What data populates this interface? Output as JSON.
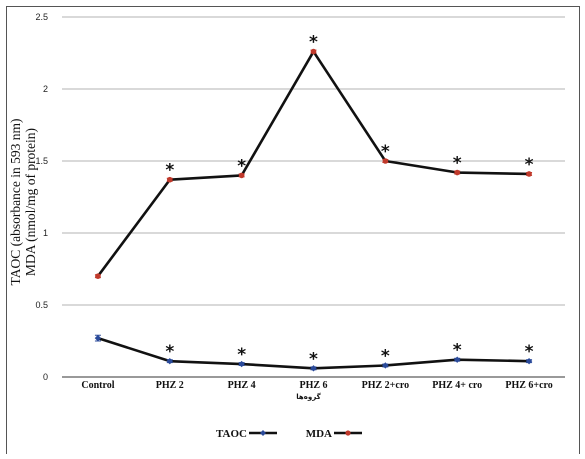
{
  "chart_data": {
    "type": "line",
    "title": "",
    "ylabel_lines": [
      "TAOC (absorbance in 593 nm)",
      "MDA (nmol/mg of protein)"
    ],
    "xlabel": "گروه‌ها",
    "categories": [
      "Control",
      "PHZ 2",
      "PHZ 4",
      "PHZ 6",
      "PHZ 2+cro",
      "PHZ 4+ cro",
      "PHZ 6+cro"
    ],
    "ylim": [
      0,
      2.5
    ],
    "yticks": [
      "0",
      "0.5",
      "1",
      "1.5",
      "2",
      "2.5"
    ],
    "grid": true,
    "legend_position": "bottom",
    "series": [
      {
        "name": "TAOC",
        "color": "#2a4a9a",
        "marker": "diamond",
        "values": [
          0.27,
          0.11,
          0.09,
          0.06,
          0.08,
          0.12,
          0.11
        ],
        "error": [
          0.02,
          0.01,
          0.01,
          0.01,
          0.01,
          0.01,
          0.01
        ],
        "significant": [
          false,
          true,
          true,
          true,
          true,
          true,
          true
        ]
      },
      {
        "name": "MDA",
        "color": "#c0392b",
        "marker": "circle",
        "values": [
          0.7,
          1.37,
          1.4,
          2.26,
          1.5,
          1.42,
          1.41
        ],
        "error": [
          0.01,
          0.01,
          0.01,
          0.01,
          0.01,
          0.01,
          0.01
        ],
        "significant": [
          false,
          true,
          true,
          true,
          true,
          true,
          true
        ]
      }
    ],
    "significance_mark": "*"
  }
}
